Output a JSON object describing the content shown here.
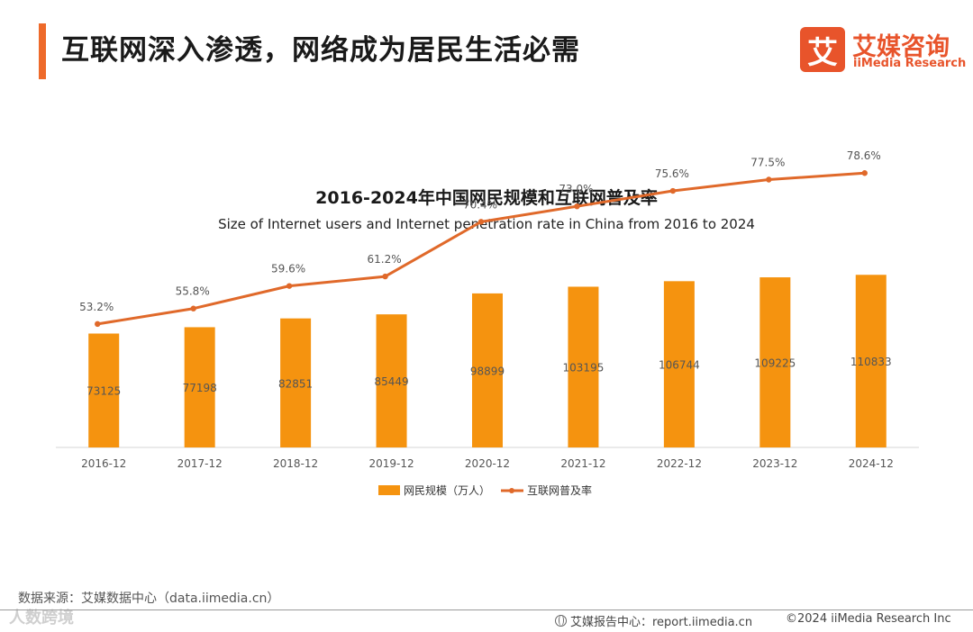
{
  "header": {
    "title": "互联网深入渗透，网络成为居民生活必需",
    "accent_color": "#ee6a2a"
  },
  "logo": {
    "glyph": "艾",
    "name_cn": "艾媒咨询",
    "name_en": "iiMedia Research",
    "color": "#e8542b"
  },
  "chart_data": {
    "type": "bar",
    "title": "2016-2024年中国网民规模和互联网普及率",
    "subtitle": "Size of Internet users and Internet penetration rate in China from 2016 to 2024",
    "categories": [
      "2016-12",
      "2017-12",
      "2018-12",
      "2019-12",
      "2020-12",
      "2021-12",
      "2022-12",
      "2023-12",
      "2024-12"
    ],
    "series": [
      {
        "name": "网民规模（万人）",
        "type": "bar",
        "values": [
          73125,
          77198,
          82851,
          85449,
          98899,
          103195,
          106744,
          109225,
          110833
        ],
        "color": "#f5930f"
      },
      {
        "name": "互联网普及率",
        "type": "line",
        "values": [
          53.2,
          55.8,
          59.6,
          61.2,
          70.4,
          73.0,
          75.6,
          77.5,
          78.6
        ],
        "labels": [
          "53.2%",
          "55.8%",
          "59.6%",
          "61.2%",
          "70.4%",
          "73.0%",
          "75.6%",
          "77.5%",
          "78.6%"
        ],
        "color": "#e0692a"
      }
    ],
    "grid": false,
    "legend": "bottom-center"
  },
  "footer": {
    "source": "数据来源：艾媒数据中心（data.iimedia.cn）",
    "watermark": "人数跨境",
    "report": "艾媒报告中心：report.iimedia.cn",
    "copyright": "©2024  iiMedia Research  Inc"
  }
}
